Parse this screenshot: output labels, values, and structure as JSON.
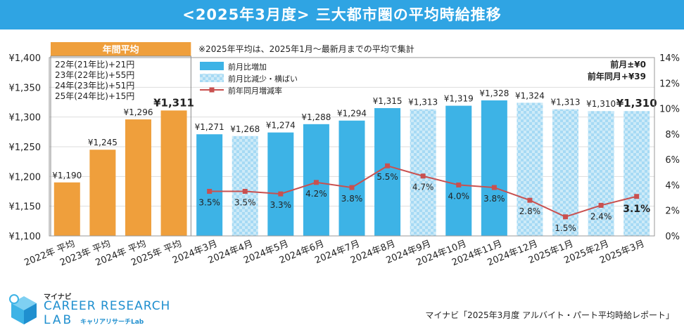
{
  "title": "<2025年3月度> 三大都市圏の平均時給推移",
  "source": "マイナビ「2025年3月度 アルバイト・パート平均時給レポート」",
  "brand": {
    "kana": "マイナビ",
    "line1": "CAREER RESEARCH",
    "line2": "LAB",
    "sub": "キャリアリサーチLab"
  },
  "colors": {
    "orange": "#ef9f3c",
    "blue_up": "#3db3e6",
    "blue_down": "#a6daf4",
    "line": "#c9504f"
  },
  "chart_data": {
    "type": "bar",
    "note": "※2025年平均は、2025年1月〜最新月までの平均で集計",
    "annual_box_title": "年間平均",
    "annual_notes": [
      "22年(21年比)+21円",
      "23年(22年比)+55円",
      "24年(23年比)+51円",
      "25年(24年比)+15円"
    ],
    "corner_notes": [
      "前月±¥0",
      "前年同月+¥39"
    ],
    "legend": [
      "前月比増加",
      "前月比減少・横ばい",
      "前年同月増減率"
    ],
    "categories": [
      "2022年 平均",
      "2023年 平均",
      "2024年 平均",
      "2025年 平均",
      "2024年3月",
      "2024年4月",
      "2024年5月",
      "2024年6月",
      "2024年7月",
      "2024年8月",
      "2024年9月",
      "2024年10月",
      "2024年11月",
      "2024年12月",
      "2025年1月",
      "2025年2月",
      "2025年3月"
    ],
    "values": [
      1190,
      1245,
      1296,
      1311,
      1271,
      1268,
      1274,
      1288,
      1294,
      1315,
      1313,
      1319,
      1328,
      1324,
      1313,
      1310,
      1310
    ],
    "value_labels": [
      "¥1,190",
      "¥1,245",
      "¥1,296",
      "¥1,311",
      "¥1,271",
      "¥1,268",
      "¥1,274",
      "¥1,288",
      "¥1,294",
      "¥1,315",
      "¥1,313",
      "¥1,319",
      "¥1,328",
      "¥1,324",
      "¥1,313",
      "¥1,310",
      "¥1,310"
    ],
    "bar_types": [
      "annual",
      "annual",
      "annual",
      "annual",
      "up",
      "down",
      "up",
      "up",
      "up",
      "up",
      "down",
      "up",
      "up",
      "down",
      "down",
      "down",
      "down"
    ],
    "yoy_rates": [
      3.5,
      3.5,
      3.3,
      4.2,
      3.8,
      5.5,
      4.7,
      4.0,
      3.8,
      2.8,
      1.5,
      2.4,
      3.1
    ],
    "yoy_labels": [
      "3.5%",
      "3.5%",
      "3.3%",
      "4.2%",
      "3.8%",
      "5.5%",
      "4.7%",
      "4.0%",
      "3.8%",
      "2.8%",
      "1.5%",
      "2.4%",
      "3.1%"
    ],
    "ylim": [
      1100,
      1400
    ],
    "yticks": [
      "¥1,100",
      "¥1,150",
      "¥1,200",
      "¥1,250",
      "¥1,300",
      "¥1,350",
      "¥1,400"
    ],
    "y2lim": [
      0,
      14
    ],
    "y2ticks": [
      "0%",
      "2%",
      "4%",
      "6%",
      "8%",
      "10%",
      "12%",
      "14%"
    ]
  }
}
